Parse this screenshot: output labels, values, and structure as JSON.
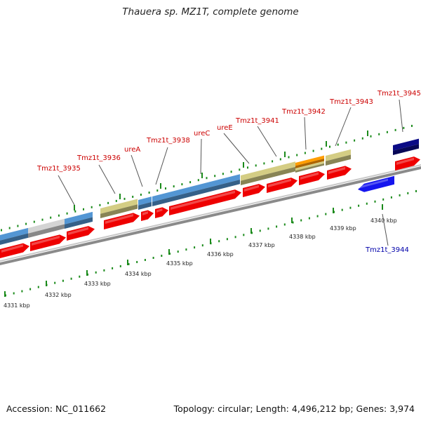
{
  "title": "Thauera sp. MZ1T, complete genome",
  "footer": {
    "accession": "Accession: NC_011662",
    "stats": "Topology: circular; Length: 4,496,212 bp; Genes: 3,974"
  },
  "colors": {
    "cds": "#ee0000",
    "cds_reverse": "#1515ee",
    "gene_steelblue": "#4a86bd",
    "gene_khaki": "#bdb776",
    "gene_gray": "#bdbdbd",
    "gene_orange": "#f08c00",
    "gene_navy": "#0a0a78",
    "backbone": "#8a8a8a",
    "tick": "#1a8a1a",
    "label_forward": "#cc0000",
    "label_reverse": "#0000aa"
  },
  "ticks": [
    "4331 kbp",
    "4332 kbp",
    "4333 kbp",
    "4334 kbp",
    "4335 kbp",
    "4336 kbp",
    "4337 kbp",
    "4338 kbp",
    "4339 kbp",
    "4340 kbp"
  ],
  "gene_labels": [
    "Tmz1t_3935",
    "Tmz1t_3936",
    "ureA",
    "Tmz1t_3938",
    "ureC",
    "ureE",
    "Tmz1t_3941",
    "Tmz1t_3942",
    "Tmz1t_3943",
    "Tmz1t_3945",
    "Tmz1t_3944"
  ],
  "icons": [
    "forward-arrow-icon",
    "reverse-arrow-icon"
  ]
}
